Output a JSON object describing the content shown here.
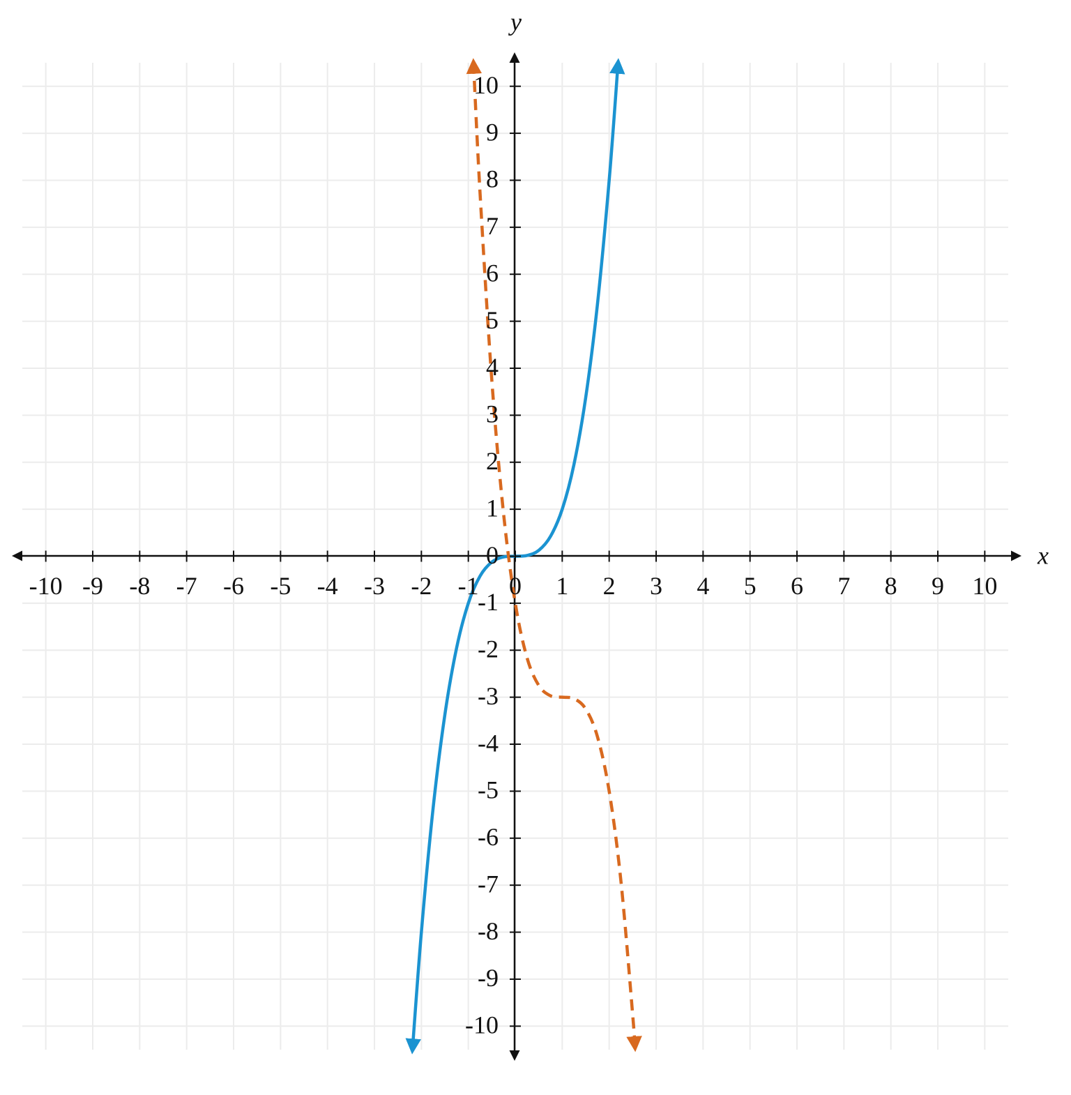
{
  "chart_data": {
    "type": "line",
    "x_label": "x",
    "y_label": "y",
    "xlim": [
      -10.5,
      10.5
    ],
    "ylim": [
      -10.5,
      10.5
    ],
    "xticks": [
      -10,
      -9,
      -8,
      -7,
      -6,
      -5,
      -4,
      -3,
      -2,
      -1,
      0,
      1,
      2,
      3,
      4,
      5,
      6,
      7,
      8,
      9,
      10
    ],
    "yticks": [
      -10,
      -9,
      -8,
      -7,
      -6,
      -5,
      -4,
      -3,
      -2,
      -1,
      0,
      1,
      2,
      3,
      4,
      5,
      6,
      7,
      8,
      9,
      10
    ],
    "grid": true,
    "series": [
      {
        "color": "#1b93d1",
        "dashed": false,
        "x": [
          -2.19,
          -2,
          -1.75,
          -1.5,
          -1.25,
          -1,
          -0.75,
          -0.5,
          -0.25,
          0,
          0.25,
          0.5,
          0.75,
          1,
          1.25,
          1.5,
          1.75,
          2,
          2.19
        ],
        "values": [
          -10.5,
          -8,
          -5.359,
          -3.375,
          -1.953,
          -1,
          -0.422,
          -0.125,
          -0.016,
          0,
          0.016,
          0.125,
          0.422,
          1,
          1.953,
          3.375,
          5.359,
          8,
          10.5
        ]
      },
      {
        "color": "#d8691f",
        "dashed": true,
        "x": [
          -0.89,
          -0.75,
          -0.5,
          -0.25,
          0,
          0.25,
          0.5,
          0.75,
          1,
          1.25,
          1.5,
          1.75,
          2,
          2.25,
          2.5,
          2.55
        ],
        "values": [
          10.5,
          7.72,
          3.75,
          0.91,
          -1,
          -2.16,
          -2.75,
          -2.97,
          -3,
          -3.03,
          -3.25,
          -3.84,
          -5,
          -6.91,
          -9.75,
          -10.45
        ]
      }
    ]
  }
}
